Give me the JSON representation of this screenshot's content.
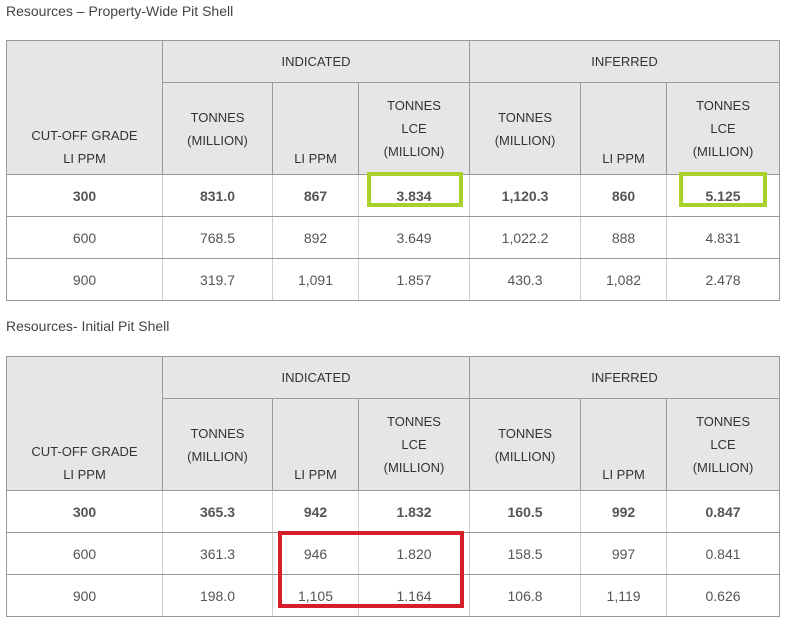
{
  "tables": [
    {
      "title": "Resources – Property-Wide Pit Shell",
      "groups": [
        "INDICATED",
        "INFERRED"
      ],
      "corner": [
        "CUT-OFF GRADE",
        "LI PPM"
      ],
      "subheaders": [
        [
          "TONNES",
          "(MILLION)"
        ],
        [
          "LI PPM"
        ],
        [
          "TONNES",
          "LCE",
          "(MILLION)"
        ],
        [
          "TONNES",
          "(MILLION)"
        ],
        [
          "LI PPM"
        ],
        [
          "TONNES",
          "LCE",
          "(MILLION)"
        ]
      ],
      "rows": [
        [
          "300",
          "831.0",
          "867",
          "3.834",
          "1,120.3",
          "860",
          "5.125"
        ],
        [
          "600",
          "768.5",
          "892",
          "3.649",
          "1,022.2",
          "888",
          "4.831"
        ],
        [
          "900",
          "319.7",
          "1,091",
          "1.857",
          "430.3",
          "1,082",
          "2.478"
        ]
      ]
    },
    {
      "title": "Resources- Initial Pit Shell",
      "groups": [
        "INDICATED",
        "INFERRED"
      ],
      "corner": [
        "CUT-OFF GRADE",
        "LI PPM"
      ],
      "subheaders": [
        [
          "TONNES",
          "(MILLION)"
        ],
        [
          "LI PPM"
        ],
        [
          "TONNES",
          "LCE",
          "(MILLION)"
        ],
        [
          "TONNES",
          "(MILLION)"
        ],
        [
          "LI PPM"
        ],
        [
          "TONNES",
          "LCE",
          "(MILLION)"
        ]
      ],
      "rows": [
        [
          "300",
          "365.3",
          "942",
          "1.832",
          "160.5",
          "992",
          "0.847"
        ],
        [
          "600",
          "361.3",
          "946",
          "1.820",
          "158.5",
          "997",
          "0.841"
        ],
        [
          "900",
          "198.0",
          "1,105",
          "1.164",
          "106.8",
          "1,119",
          "0.626"
        ]
      ]
    }
  ],
  "highlight_colors": {
    "green": "#a8d22a",
    "red": "#d61f2b"
  }
}
